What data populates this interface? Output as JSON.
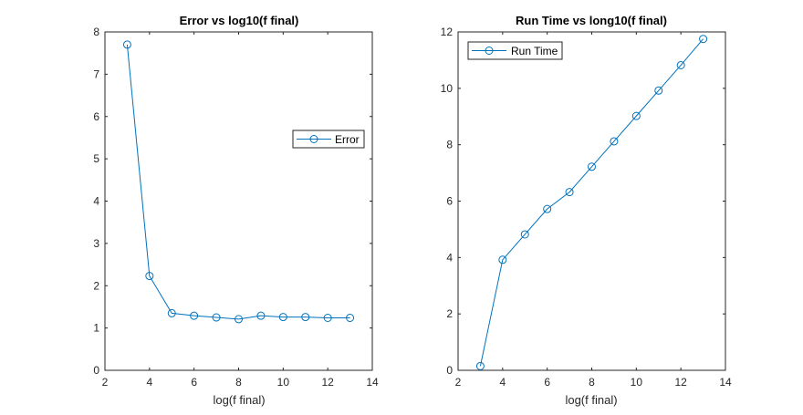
{
  "chart_data": [
    {
      "type": "line",
      "title": "Error vs log10(f final)",
      "xlabel": "log(f final)",
      "ylabel": "",
      "xlim": [
        2,
        14
      ],
      "ylim": [
        0,
        8
      ],
      "xticks": [
        2,
        4,
        6,
        8,
        10,
        12,
        14
      ],
      "yticks": [
        0,
        1,
        2,
        3,
        4,
        5,
        6,
        7,
        8
      ],
      "legend_position": "right",
      "series": [
        {
          "name": "Error",
          "marker": "circle",
          "color": "#0072BD",
          "x": [
            3,
            4,
            5,
            6,
            7,
            8,
            9,
            10,
            11,
            12,
            13
          ],
          "values": [
            7.7,
            2.23,
            1.35,
            1.29,
            1.25,
            1.21,
            1.29,
            1.26,
            1.26,
            1.24,
            1.24
          ]
        }
      ]
    },
    {
      "type": "line",
      "title": "Run Time vs long10(f final)",
      "xlabel": "log(f final)",
      "ylabel": "",
      "xlim": [
        2,
        14
      ],
      "ylim": [
        0,
        12
      ],
      "xticks": [
        2,
        4,
        6,
        8,
        10,
        12,
        14
      ],
      "yticks": [
        0,
        2,
        4,
        6,
        8,
        10,
        12
      ],
      "legend_position": "top-left",
      "series": [
        {
          "name": "Run Time",
          "marker": "circle",
          "color": "#0072BD",
          "x": [
            3,
            4,
            5,
            6,
            7,
            8,
            9,
            10,
            11,
            12,
            13
          ],
          "values": [
            0.15,
            3.92,
            4.82,
            5.72,
            6.32,
            7.22,
            8.12,
            9.02,
            9.92,
            10.82,
            11.75
          ]
        }
      ]
    }
  ]
}
